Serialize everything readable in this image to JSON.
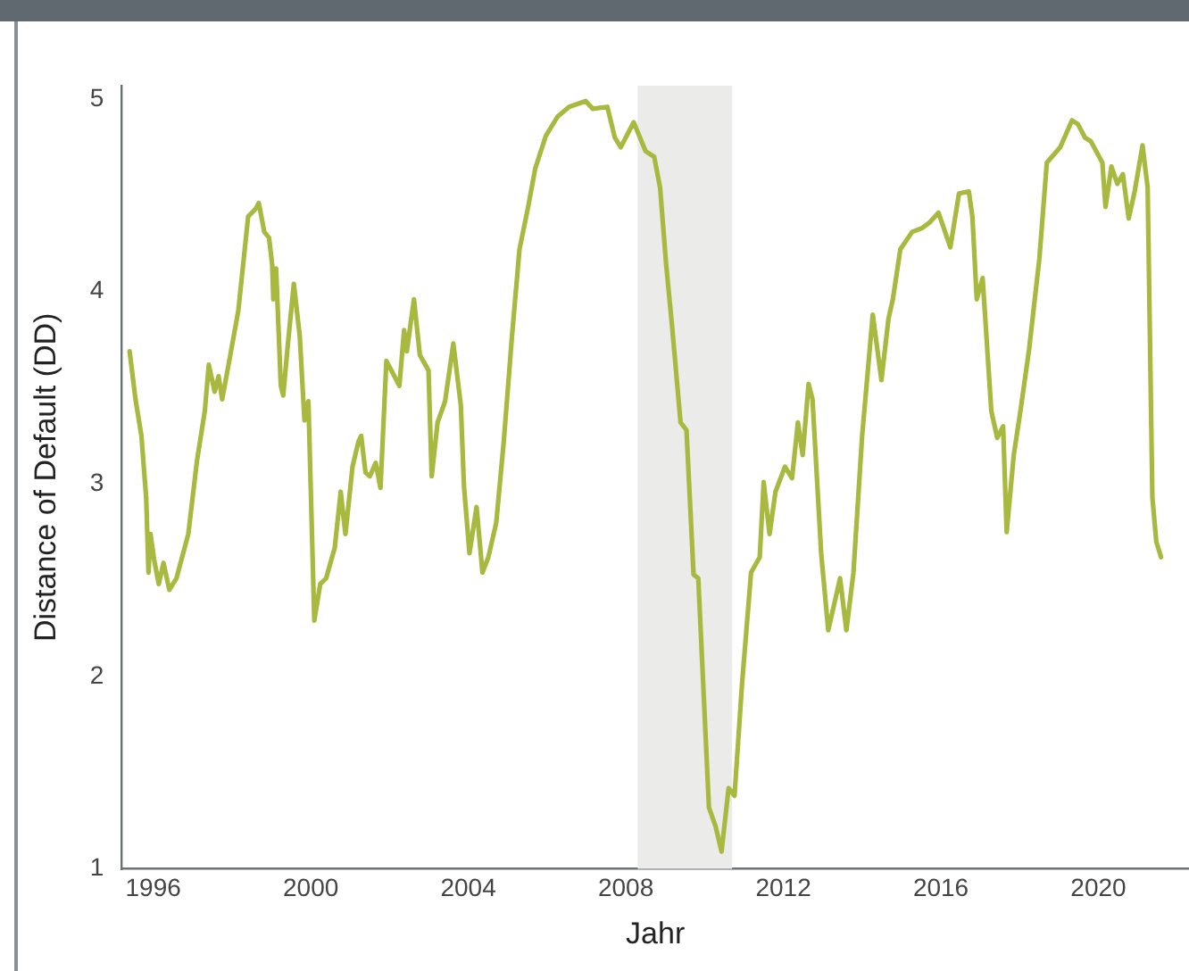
{
  "chart_data": {
    "type": "line",
    "xlabel": "Jahr",
    "ylabel": "Distance of Default (DD)",
    "xlim": [
      1995.2,
      2022.3
    ],
    "xticks": [
      1996,
      2000,
      2004,
      2008,
      2012,
      2016,
      2020
    ],
    "ylim": [
      1,
      5.07
    ],
    "yticks": [
      1,
      2,
      3,
      4,
      5
    ],
    "grid": false,
    "legend": false,
    "marker": "none",
    "line_style": "solid",
    "bands": [
      {
        "axis": "x",
        "from": 2008.3,
        "to": 2010.7,
        "color": "#ebebea"
      }
    ],
    "series": [
      {
        "color": "#a9b83e",
        "x": [
          1995.4,
          1995.55,
          1995.7,
          1995.82,
          1995.88,
          1995.93,
          1996.02,
          1996.14,
          1996.26,
          1996.41,
          1996.59,
          1996.89,
          1997.11,
          1997.31,
          1997.41,
          1997.56,
          1997.66,
          1997.75,
          1997.93,
          1998.16,
          1998.41,
          1998.6,
          1998.68,
          1998.82,
          1998.94,
          1999.02,
          1999.05,
          1999.12,
          1999.24,
          1999.3,
          1999.42,
          1999.57,
          1999.72,
          1999.84,
          1999.94,
          2000.09,
          2000.24,
          2000.39,
          2000.61,
          2000.76,
          2000.88,
          2001.06,
          2001.21,
          2001.28,
          2001.39,
          2001.5,
          2001.65,
          2001.77,
          2001.92,
          2002.1,
          2002.25,
          2002.37,
          2002.44,
          2002.62,
          2002.77,
          2002.99,
          2003.07,
          2003.22,
          2003.41,
          2003.62,
          2003.81,
          2003.89,
          2004.03,
          2004.21,
          2004.36,
          2004.51,
          2004.71,
          2004.9,
          2005.11,
          2005.3,
          2005.52,
          2005.7,
          2005.97,
          2006.27,
          2006.56,
          2006.98,
          2007.16,
          2007.53,
          2007.72,
          2007.87,
          2008.2,
          2008.5,
          2008.72,
          2008.87,
          2009.02,
          2009.17,
          2009.39,
          2009.54,
          2009.72,
          2009.84,
          2010.11,
          2010.28,
          2010.43,
          2010.61,
          2010.76,
          2010.95,
          2011.18,
          2011.4,
          2011.5,
          2011.65,
          2011.8,
          2012.04,
          2012.22,
          2012.37,
          2012.49,
          2012.64,
          2012.74,
          2012.96,
          2013.14,
          2013.44,
          2013.6,
          2013.78,
          2014.0,
          2014.27,
          2014.49,
          2014.67,
          2014.78,
          2014.97,
          2015.27,
          2015.52,
          2015.72,
          2015.94,
          2016.24,
          2016.46,
          2016.71,
          2016.8,
          2016.91,
          2017.06,
          2017.28,
          2017.43,
          2017.58,
          2017.67,
          2017.85,
          2018.02,
          2018.24,
          2018.5,
          2018.69,
          2019.03,
          2019.33,
          2019.48,
          2019.66,
          2019.81,
          2020.1,
          2020.18,
          2020.33,
          2020.48,
          2020.62,
          2020.77,
          2020.92,
          2021.12,
          2021.25,
          2021.37,
          2021.47,
          2021.59
        ],
        "values": [
          3.69,
          3.44,
          3.25,
          2.93,
          2.54,
          2.74,
          2.61,
          2.48,
          2.59,
          2.45,
          2.51,
          2.74,
          3.12,
          3.38,
          3.62,
          3.48,
          3.56,
          3.44,
          3.64,
          3.9,
          4.39,
          4.43,
          4.46,
          4.31,
          4.28,
          4.14,
          3.96,
          4.12,
          3.51,
          3.46,
          3.73,
          4.04,
          3.77,
          3.33,
          3.43,
          2.29,
          2.48,
          2.51,
          2.67,
          2.96,
          2.74,
          3.09,
          3.22,
          3.25,
          3.06,
          3.04,
          3.11,
          2.98,
          3.64,
          3.57,
          3.51,
          3.8,
          3.69,
          3.96,
          3.67,
          3.59,
          3.04,
          3.32,
          3.43,
          3.73,
          3.41,
          2.99,
          2.64,
          2.88,
          2.54,
          2.62,
          2.8,
          3.22,
          3.77,
          4.22,
          4.44,
          4.64,
          4.81,
          4.91,
          4.96,
          4.99,
          4.95,
          4.96,
          4.8,
          4.75,
          4.88,
          4.73,
          4.7,
          4.54,
          4.15,
          3.83,
          3.32,
          3.28,
          2.53,
          2.51,
          1.32,
          1.22,
          1.09,
          1.42,
          1.38,
          1.96,
          2.54,
          2.62,
          3.01,
          2.74,
          2.96,
          3.09,
          3.03,
          3.32,
          3.15,
          3.52,
          3.44,
          2.64,
          2.24,
          2.51,
          2.24,
          2.54,
          3.25,
          3.88,
          3.54,
          3.86,
          3.96,
          4.22,
          4.31,
          4.33,
          4.36,
          4.41,
          4.23,
          4.51,
          4.52,
          4.39,
          3.96,
          4.07,
          3.38,
          3.24,
          3.3,
          2.75,
          3.15,
          3.38,
          3.7,
          4.17,
          4.67,
          4.75,
          4.89,
          4.87,
          4.8,
          4.78,
          4.67,
          4.44,
          4.65,
          4.56,
          4.61,
          4.38,
          4.52,
          4.76,
          4.54,
          2.93,
          2.7,
          2.62
        ]
      }
    ]
  }
}
